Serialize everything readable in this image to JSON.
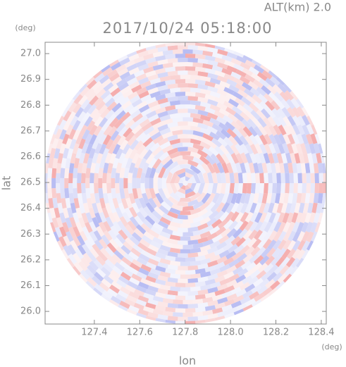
{
  "chart_data": {
    "type": "radar-ppi",
    "title": "2017/10/24 05:18:00",
    "subtitle": "ALT(km) 2.0",
    "x_label": "lon",
    "y_label": "lat",
    "x_unit": "(deg)",
    "y_unit": "(deg)",
    "xlim": [
      127.183,
      128.422
    ],
    "ylim": [
      25.951,
      27.044
    ],
    "xticks": [
      127.4,
      127.6,
      127.8,
      {
        "value": 128.0,
        "label": "128.0"
      },
      128.2,
      128.4
    ],
    "yticks": [
      {
        "value": 26.0,
        "label": "26.0"
      },
      26.1,
      26.2,
      26.3,
      26.4,
      26.5,
      26.6,
      26.7,
      26.8,
      26.9,
      {
        "value": 27.0,
        "label": "27.0"
      }
    ],
    "colors": [
      "#f4a9a9",
      "#b4b9f2"
    ]
  }
}
